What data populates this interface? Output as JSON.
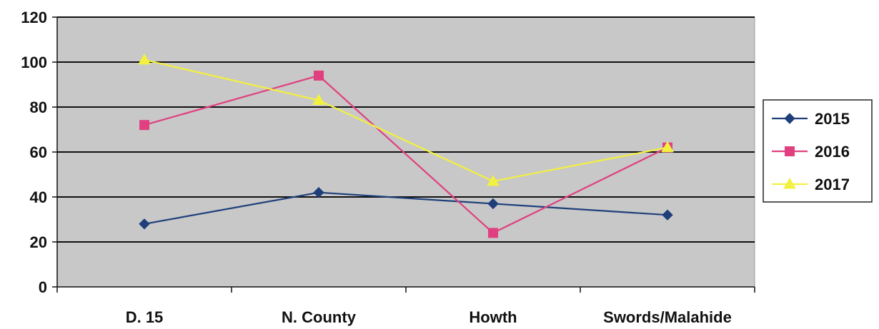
{
  "chart_data": {
    "type": "line",
    "title": "",
    "xlabel": "",
    "ylabel": "",
    "categories": [
      "D. 15",
      "N. County",
      "Howth",
      "Swords/Malahide"
    ],
    "ylim": [
      0,
      120
    ],
    "yticks": [
      0,
      20,
      40,
      60,
      80,
      100,
      120
    ],
    "grid": true,
    "legend_position": "right",
    "plot_background": "#c8c8c8",
    "series": [
      {
        "name": "2015",
        "values": [
          28,
          42,
          37,
          32
        ],
        "color": "#1f3f7a",
        "marker": "diamond"
      },
      {
        "name": "2016",
        "values": [
          72,
          94,
          24,
          62
        ],
        "color": "#e0407f",
        "marker": "square"
      },
      {
        "name": "2017",
        "values": [
          101,
          83,
          47,
          62
        ],
        "color": "#f2f040",
        "marker": "triangle"
      }
    ]
  }
}
